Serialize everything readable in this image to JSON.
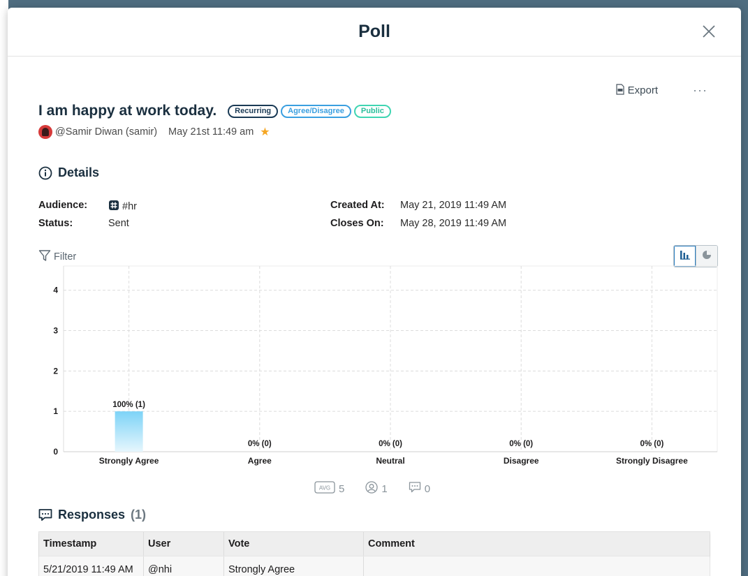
{
  "modal": {
    "title": "Poll"
  },
  "actions": {
    "export_label": "Export",
    "more_label": "···"
  },
  "poll": {
    "question": "I am happy at work today.",
    "tags": [
      "Recurring",
      "Agree/Disagree",
      "Public"
    ],
    "author": "@Samir Diwan (samir)",
    "posted": "May 21st 11:49 am",
    "starred": true
  },
  "details": {
    "heading": "Details",
    "audience_label": "Audience:",
    "audience_value": "#hr",
    "status_label": "Status:",
    "status_value": "Sent",
    "created_label": "Created At:",
    "created_value": "May 21, 2019 11:49 AM",
    "closes_label": "Closes On:",
    "closes_value": "May 28, 2019 11:49 AM"
  },
  "filter_label": "Filter",
  "view_toggle": {
    "active": "bar-chart",
    "options": [
      "bar-chart",
      "pie-chart"
    ]
  },
  "chart_data": {
    "type": "bar",
    "categories": [
      "Strongly Agree",
      "Agree",
      "Neutral",
      "Disagree",
      "Strongly Disagree"
    ],
    "values": [
      1,
      0,
      0,
      0,
      0
    ],
    "data_labels": [
      "100% (1)",
      "0% (0)",
      "0% (0)",
      "0% (0)",
      "0% (0)"
    ],
    "ylim": [
      0,
      4.6
    ],
    "yticks": [
      0,
      1,
      2,
      3,
      4
    ],
    "grid": true,
    "bar_color": "#7dd3f7"
  },
  "stats": {
    "avg_badge": "AVG",
    "avg": "5",
    "respondents": "1",
    "comments": "0"
  },
  "responses": {
    "heading": "Responses",
    "count": "(1)",
    "columns": [
      "Timestamp",
      "User",
      "Vote",
      "Comment"
    ],
    "rows": [
      [
        "5/21/2019 11:49 AM",
        "@nhi",
        "Strongly Agree",
        ""
      ]
    ]
  }
}
